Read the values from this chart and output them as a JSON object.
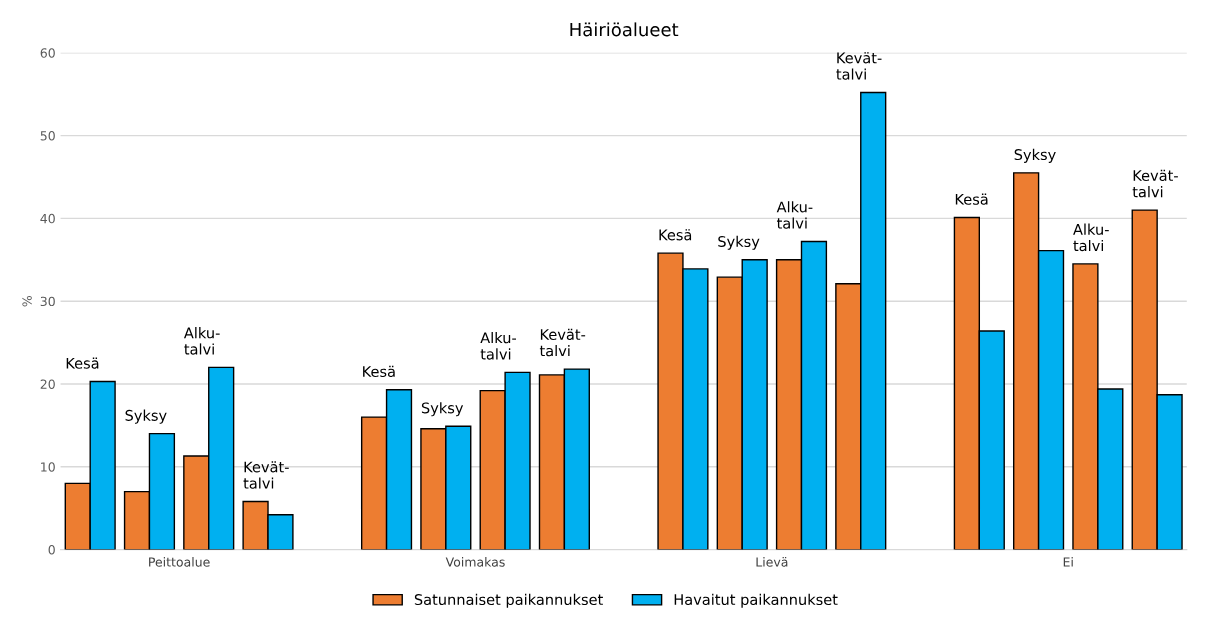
{
  "chart_data": {
    "type": "bar",
    "title": "Häiriöalueet",
    "ylabel": "%",
    "categories": [
      null,
      null,
      null,
      null,
      null,
      null,
      null,
      null,
      null,
      null,
      null,
      null,
      null,
      null,
      null,
      null,
      null,
      null,
      null
    ],
    "series": [
      {
        "name": "Satunnaiset paikannukset",
        "color": "#ed7d31",
        "values": [
          8.0,
          7.0,
          11.3,
          5.8,
          null,
          16.0,
          14.6,
          19.2,
          21.1,
          null,
          35.8,
          32.9,
          35.0,
          32.1,
          null,
          40.1,
          45.5,
          34.5,
          41.0
        ]
      },
      {
        "name": "Havaitut paikannukset",
        "color": "#00b0f0",
        "values": [
          20.3,
          14.0,
          22.0,
          4.2,
          null,
          19.3,
          14.9,
          21.4,
          21.8,
          null,
          33.9,
          35.0,
          37.2,
          55.2,
          null,
          26.4,
          36.1,
          19.4,
          18.7
        ]
      }
    ],
    "annotations": [
      "Peittoalue",
      "Voimakas",
      "Lievä",
      "Ei",
      "Kesä",
      "Syksy",
      "Alku-\ntalvi",
      "Kevät-\ntalvi",
      "Kesä",
      "Syksy",
      "Alku-\ntalvi",
      "Kevät-\ntalvi",
      "Kesä",
      "Syksy",
      "Alku-\ntalvi",
      "Kevät-\ntalvi",
      "Kesä",
      "Syksy",
      "Alku-\ntalvi",
      "Kevät-\ntalvi"
    ],
    "ylim": [
      0,
      60
    ],
    "yticks": [
      0,
      10,
      20,
      30,
      40,
      50,
      60
    ],
    "grid": "y",
    "legend": "bottom"
  }
}
